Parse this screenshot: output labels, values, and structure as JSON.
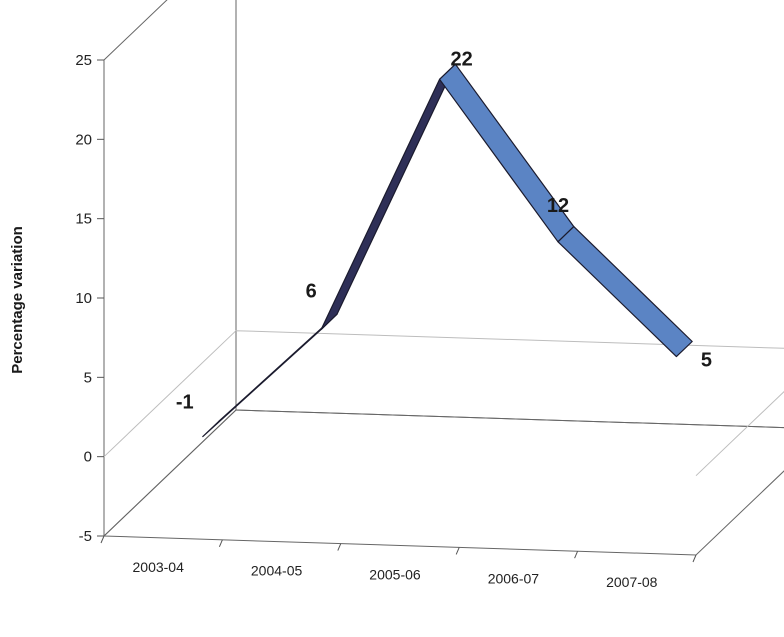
{
  "chart_data": {
    "type": "line",
    "style": "3d-ribbon",
    "categories": [
      "2003-04",
      "2004-05",
      "2005-06",
      "2006-07",
      "2007-08"
    ],
    "series": [
      {
        "values": [
          -1,
          6,
          22,
          12,
          5
        ]
      }
    ],
    "data_labels": [
      "-1",
      "6",
      "22",
      "12",
      "5"
    ],
    "ylabel": "Percentage variation",
    "xlabel": "",
    "ylim": [
      -5,
      25
    ],
    "yticks": [
      -5,
      0,
      5,
      10,
      15,
      20,
      25
    ],
    "grid": false,
    "colors": {
      "ribbon_front": "#5b84c4",
      "ribbon_dark": "#2e2f57",
      "wall_line": "#666666"
    }
  }
}
